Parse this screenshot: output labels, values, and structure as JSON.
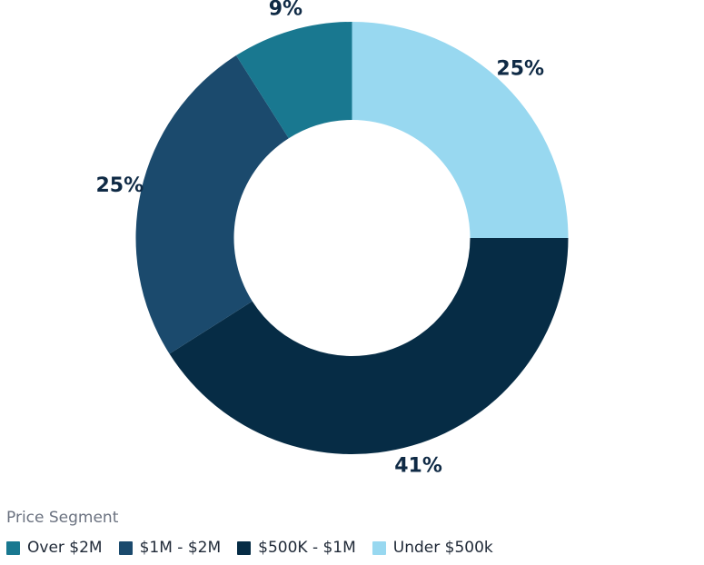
{
  "chart_data": {
    "type": "pie",
    "donut": true,
    "legend_title": "Price Segment",
    "legend_position": "bottom-left",
    "slices": [
      {
        "name": "Under $500k",
        "value": 25,
        "label": "25%",
        "color": "#98d8f0"
      },
      {
        "name": "$500K - $1M",
        "value": 41,
        "label": "41%",
        "color": "#062c45"
      },
      {
        "name": "$1M - $2M",
        "value": 25,
        "label": "25%",
        "color": "#1b4a6d"
      },
      {
        "name": "Over $2M",
        "value": 9,
        "label": "9%",
        "color": "#197890"
      }
    ],
    "legend": [
      {
        "name": "Over $2M",
        "color": "#197890"
      },
      {
        "name": "$1M - $2M",
        "color": "#1b4a6d"
      },
      {
        "name": "$500K - $1M",
        "color": "#062c45"
      },
      {
        "name": "Under $500k",
        "color": "#98d8f0"
      }
    ]
  }
}
